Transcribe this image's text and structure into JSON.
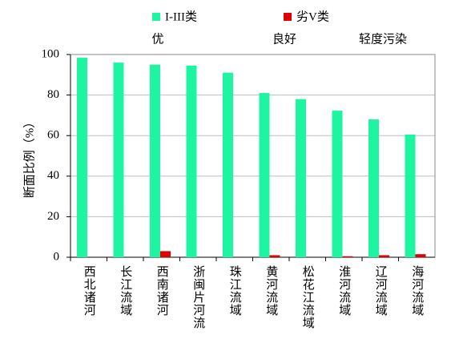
{
  "chart_data": {
    "type": "bar",
    "y_label": "断面比例（%）",
    "categories": [
      "西北诸河",
      "长江流域",
      "西南诸河",
      "浙闽片河流",
      "珠江流域",
      "黄河流域",
      "松花江流域",
      "淮河流域",
      "辽河流域",
      "海河流域"
    ],
    "series": [
      {
        "name": "I-III类",
        "color": "#1df5a0",
        "values": [
          98.4,
          96,
          95,
          94.5,
          91,
          81,
          78,
          72.3,
          68,
          60.5
        ]
      },
      {
        "name": "劣V类",
        "color": "#e00000",
        "values": [
          0,
          0,
          3,
          0,
          0,
          1,
          0,
          0.5,
          1,
          1.5
        ]
      }
    ],
    "annotations": [
      "优",
      "良好",
      "轻度污染"
    ],
    "ylim": [
      0,
      100
    ],
    "yticks": [
      0,
      20,
      40,
      60,
      80,
      100
    ],
    "grid": true
  }
}
